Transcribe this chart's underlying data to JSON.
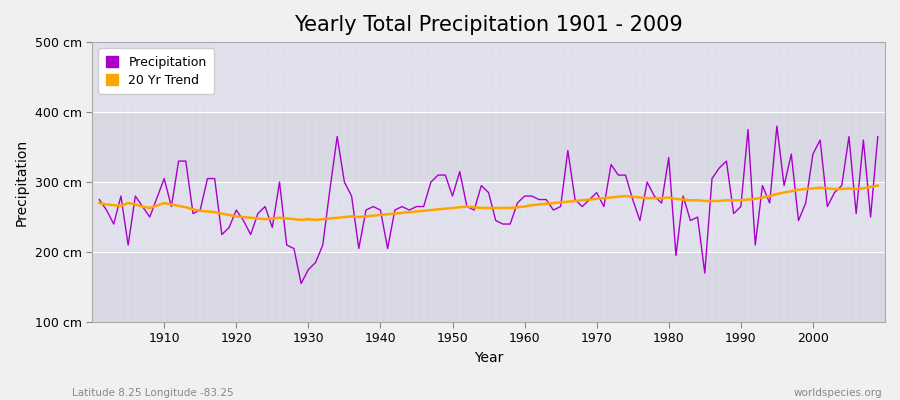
{
  "title": "Yearly Total Precipitation 1901 - 2009",
  "xlabel": "Year",
  "ylabel": "Precipitation",
  "subtitle_left": "Latitude 8.25 Longitude -83.25",
  "subtitle_right": "worldspecies.org",
  "years": [
    1901,
    1902,
    1903,
    1904,
    1905,
    1906,
    1907,
    1908,
    1910,
    1911,
    1912,
    1913,
    1914,
    1915,
    1916,
    1917,
    1918,
    1919,
    1920,
    1921,
    1922,
    1923,
    1924,
    1925,
    1926,
    1927,
    1928,
    1929,
    1930,
    1931,
    1932,
    1933,
    1934,
    1935,
    1936,
    1937,
    1938,
    1939,
    1940,
    1941,
    1942,
    1943,
    1944,
    1945,
    1946,
    1947,
    1948,
    1949,
    1950,
    1951,
    1952,
    1953,
    1954,
    1955,
    1956,
    1957,
    1958,
    1959,
    1960,
    1961,
    1962,
    1963,
    1964,
    1965,
    1966,
    1967,
    1968,
    1969,
    1970,
    1971,
    1972,
    1973,
    1974,
    1975,
    1976,
    1977,
    1978,
    1979,
    1980,
    1981,
    1982,
    1983,
    1984,
    1985,
    1986,
    1987,
    1988,
    1989,
    1990,
    1991,
    1992,
    1993,
    1994,
    1995,
    1996,
    1997,
    1998,
    1999,
    2000,
    2001,
    2002,
    2003,
    2004,
    2005,
    2006,
    2007,
    2008,
    2009
  ],
  "precipitation": [
    275,
    260,
    240,
    280,
    210,
    280,
    265,
    250,
    305,
    265,
    330,
    330,
    255,
    260,
    305,
    305,
    225,
    235,
    260,
    245,
    225,
    255,
    265,
    235,
    300,
    210,
    205,
    155,
    175,
    185,
    210,
    290,
    365,
    300,
    280,
    205,
    260,
    265,
    260,
    205,
    260,
    265,
    260,
    265,
    265,
    300,
    310,
    310,
    280,
    315,
    265,
    260,
    295,
    285,
    245,
    240,
    240,
    270,
    280,
    280,
    275,
    275,
    260,
    265,
    345,
    275,
    265,
    275,
    285,
    265,
    325,
    310,
    310,
    275,
    245,
    300,
    280,
    270,
    335,
    195,
    280,
    245,
    250,
    170,
    305,
    320,
    330,
    255,
    265,
    375,
    210,
    295,
    270,
    380,
    295,
    340,
    245,
    270,
    340,
    360,
    265,
    285,
    295,
    365,
    255,
    360,
    250,
    365
  ],
  "trend": [
    270,
    268,
    267,
    266,
    270,
    268,
    265,
    263,
    270,
    268,
    266,
    264,
    261,
    259,
    258,
    257,
    255,
    253,
    251,
    250,
    249,
    248,
    247,
    248,
    249,
    248,
    247,
    246,
    247,
    246,
    247,
    248,
    249,
    250,
    251,
    250,
    251,
    252,
    253,
    254,
    255,
    256,
    257,
    258,
    259,
    260,
    261,
    262,
    263,
    264,
    265,
    264,
    263,
    263,
    263,
    263,
    263,
    264,
    265,
    267,
    268,
    269,
    270,
    271,
    272,
    273,
    274,
    275,
    276,
    277,
    278,
    279,
    280,
    279,
    278,
    277,
    277,
    277,
    278,
    276,
    275,
    274,
    274,
    273,
    273,
    273,
    274,
    274,
    274,
    275,
    276,
    278,
    280,
    283,
    285,
    287,
    289,
    290,
    291,
    292,
    291,
    290,
    290,
    291,
    290,
    291,
    293,
    295
  ],
  "ylim": [
    100,
    500
  ],
  "yticks": [
    100,
    200,
    300,
    400,
    500
  ],
  "ytick_labels": [
    "100 cm",
    "200 cm",
    "300 cm",
    "400 cm",
    "500 cm"
  ],
  "xlim": [
    1900,
    2010
  ],
  "xticks": [
    1910,
    1920,
    1930,
    1940,
    1950,
    1960,
    1970,
    1980,
    1990,
    2000
  ],
  "precip_color": "#AA00CC",
  "trend_color": "#FFA500",
  "fig_bg_color": "#F0F0F0",
  "plot_bg_color": "#E0E0E8",
  "grid_color": "#FFFFFF",
  "title_fontsize": 15,
  "axis_label_fontsize": 10,
  "tick_fontsize": 9,
  "legend_fontsize": 9
}
